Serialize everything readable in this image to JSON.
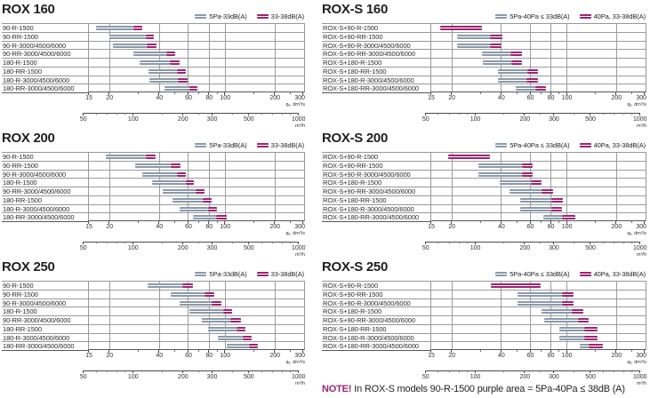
{
  "page": {
    "background": "#ffffff"
  },
  "colors": {
    "gray_bar": "#8b9aaa",
    "purple_bar": "#9c2471",
    "grid": "#9b9c9e",
    "text": "#231f20",
    "note_accent": "#9c2471"
  },
  "note": {
    "prefix": "NOTE!",
    "text": "In ROX-S models 90-R-1500 purple area = 5Pa-40Pa ≤ 38dB (A)"
  },
  "chart_data": [
    {
      "id": "rox-160",
      "title": "ROX 160",
      "type": "bar",
      "orientation": "horizontal",
      "xscale": "log",
      "xlim": [
        15,
        300
      ],
      "xticks": [
        15,
        20,
        40,
        60,
        80,
        100,
        200,
        300
      ],
      "x_minor_ticks": [
        30,
        50,
        70,
        90,
        150,
        250
      ],
      "xlabel": "qᵥ, dm³/s",
      "x2ticks": [
        50,
        100,
        200,
        300,
        500,
        1000
      ],
      "x2_minor_ticks": [
        60,
        70,
        80,
        90,
        150,
        250,
        400,
        600,
        700,
        800,
        900
      ],
      "x2label": "m³/h",
      "x2_to_x_divisor": 3.6,
      "legend": {
        "gray": "5Pa-33dB(A)",
        "purple": "33-38dB(A)"
      },
      "rows": [
        {
          "label": "90-R-1500",
          "gray": [
            16.5,
            28
          ],
          "purple": [
            28,
            31.5
          ]
        },
        {
          "label": "90-RR-1500",
          "gray": [
            20,
            33
          ],
          "purple": [
            33,
            37
          ]
        },
        {
          "label": "90-R-3000/4500/6000",
          "gray": [
            21,
            33.5
          ],
          "purple": [
            33.5,
            38.5
          ]
        },
        {
          "label": "90-RR-3000/4500/6000",
          "gray": [
            28,
            44
          ],
          "purple": [
            44,
            50
          ]
        },
        {
          "label": "180-R-1500",
          "gray": [
            30.5,
            46.5
          ],
          "purple": [
            46.5,
            53
          ]
        },
        {
          "label": "180-RR-1500",
          "gray": [
            34.5,
            51
          ],
          "purple": [
            51,
            58
          ]
        },
        {
          "label": "180-R-3000/4500/6000",
          "gray": [
            35,
            52
          ],
          "purple": [
            52,
            59
          ]
        },
        {
          "label": "180-RR-3000/4500/6000",
          "gray": [
            43,
            60.5
          ],
          "purple": [
            60.5,
            68
          ]
        }
      ]
    },
    {
      "id": "rox-s-160",
      "title": "ROX-S 160",
      "type": "bar",
      "orientation": "horizontal",
      "xscale": "log",
      "xlim": [
        15,
        300
      ],
      "xticks": [
        15,
        20,
        40,
        60,
        80,
        100,
        200,
        300
      ],
      "x_minor_ticks": [
        30,
        50,
        70,
        90,
        150,
        250
      ],
      "xlabel": "qᵥ, dm³/s",
      "x2ticks": [
        50,
        100,
        200,
        300,
        500,
        1000
      ],
      "x2_minor_ticks": [
        60,
        70,
        80,
        90,
        150,
        250,
        400,
        600,
        700,
        800,
        900
      ],
      "x2label": "m³/h",
      "x2_to_x_divisor": 3.6,
      "legend": {
        "gray": "5Pa-40Pa ≤ 33dB(A)",
        "purple": "40Pa, 33-38dB(A)"
      },
      "rows": [
        {
          "label": "ROX-S+90-R-1500",
          "gray": null,
          "purple": [
            17,
            30.5
          ]
        },
        {
          "label": "ROX-S+90-RR-1500",
          "gray": [
            21.5,
            34
          ],
          "purple": [
            34,
            40.5
          ]
        },
        {
          "label": "ROX-S+90-R-3000/4500/6000",
          "gray": [
            21.5,
            34
          ],
          "purple": [
            34,
            40
          ]
        },
        {
          "label": "ROX-S+90-RR-3000/4500/6000",
          "gray": [
            30.5,
            45.5
          ],
          "purple": [
            45.5,
            53.5
          ]
        },
        {
          "label": "ROX-S+180-R-1500",
          "gray": [
            31,
            46
          ],
          "purple": [
            46,
            53
          ]
        },
        {
          "label": "ROX-S+180-RR-1500",
          "gray": [
            38,
            57.5
          ],
          "purple": [
            57.5,
            66.5
          ]
        },
        {
          "label": "ROX-S+180-R-3000/4500/6000",
          "gray": [
            38,
            57
          ],
          "purple": [
            57,
            66.5
          ]
        },
        {
          "label": "ROX-S+180-RR-3000/4500/6000",
          "gray": [
            49,
            64
          ],
          "purple": [
            64,
            75
          ]
        }
      ]
    },
    {
      "id": "rox-200",
      "title": "ROX 200",
      "type": "bar",
      "orientation": "horizontal",
      "xscale": "log",
      "xlim": [
        15,
        300
      ],
      "xticks": [
        15,
        20,
        40,
        60,
        80,
        100,
        200,
        300
      ],
      "x_minor_ticks": [
        30,
        50,
        70,
        90,
        150,
        250
      ],
      "xlabel": "qᵥ, dm³/s",
      "x2ticks": [
        50,
        100,
        200,
        300,
        500,
        1000
      ],
      "x2_minor_ticks": [
        60,
        70,
        80,
        90,
        150,
        250,
        400,
        600,
        700,
        800,
        900
      ],
      "x2label": "m³/h",
      "x2_to_x_divisor": 3.6,
      "legend": {
        "gray": "5Pa-33dB(A)",
        "purple": "33-38dB(A)"
      },
      "rows": [
        {
          "label": "90-R-1500",
          "gray": [
            19,
            33
          ],
          "purple": [
            33,
            38
          ]
        },
        {
          "label": "90-RR-1500",
          "gray": [
            28.5,
            47
          ],
          "purple": [
            47,
            54
          ]
        },
        {
          "label": "90-R-3000/4500/6000",
          "gray": [
            31.5,
            51
          ],
          "purple": [
            51,
            58
          ]
        },
        {
          "label": "180-R-1500",
          "gray": [
            36,
            57.5
          ],
          "purple": [
            57.5,
            65
          ]
        },
        {
          "label": "90-RR-3000/4500/6000",
          "gray": [
            42,
            66.5
          ],
          "purple": [
            66.5,
            75
          ]
        },
        {
          "label": "180-RR-1500",
          "gray": [
            48,
            73.5
          ],
          "purple": [
            73.5,
            83
          ]
        },
        {
          "label": "180-R-3000/4500/6000",
          "gray": [
            53,
            79
          ],
          "purple": [
            79,
            89
          ]
        },
        {
          "label": "180-RR-3000/4500/6000",
          "gray": [
            64,
            88
          ],
          "purple": [
            88,
            102
          ]
        }
      ]
    },
    {
      "id": "rox-s-200",
      "title": "ROX-S 200",
      "type": "bar",
      "orientation": "horizontal",
      "xscale": "log",
      "xlim": [
        15,
        300
      ],
      "xticks": [
        15,
        20,
        40,
        60,
        80,
        100,
        200,
        300
      ],
      "x_minor_ticks": [
        30,
        50,
        70,
        90,
        150,
        250
      ],
      "xlabel": "qᵥ, dm³/s",
      "x2ticks": [
        50,
        100,
        200,
        300,
        500,
        1000
      ],
      "x2_minor_ticks": [
        60,
        70,
        80,
        90,
        150,
        250,
        400,
        600,
        700,
        800,
        900
      ],
      "x2label": "m³/h",
      "x2_to_x_divisor": 3.6,
      "legend": {
        "gray": "5Pa-40Pa ≤ 33dB(A)",
        "purple": "40Pa, 33-38dB(A)"
      },
      "rows": [
        {
          "label": "ROX-S+90-R-1500",
          "gray": null,
          "purple": [
            19,
            34
          ]
        },
        {
          "label": "ROX-S+90-RR-1500",
          "gray": [
            29,
            53
          ],
          "purple": [
            53,
            62
          ]
        },
        {
          "label": "ROX-S+90-R-3000/4500/6000",
          "gray": [
            29,
            53
          ],
          "purple": [
            53,
            62
          ]
        },
        {
          "label": "ROX-S+180-R-1500",
          "gray": [
            39,
            60
          ],
          "purple": [
            60,
            70
          ]
        },
        {
          "label": "ROX-S+90-RR-3000/4500/6000",
          "gray": [
            45,
            70
          ],
          "purple": [
            70,
            82
          ]
        },
        {
          "label": "ROX-S+180-RR-1500",
          "gray": [
            52,
            80
          ],
          "purple": [
            80,
            94
          ]
        },
        {
          "label": "ROX-S+180-R-3000/4500/6000",
          "gray": [
            52,
            80
          ],
          "purple": [
            80,
            93
          ]
        },
        {
          "label": "ROX-S+180-RR-3000/4500/6000",
          "gray": [
            72,
            93
          ],
          "purple": [
            93,
            112
          ]
        }
      ]
    },
    {
      "id": "rox-250",
      "title": "ROX 250",
      "type": "bar",
      "orientation": "horizontal",
      "xscale": "log",
      "xlim": [
        15,
        300
      ],
      "xticks": [
        15,
        20,
        40,
        60,
        80,
        100,
        200,
        300
      ],
      "x_minor_ticks": [
        30,
        50,
        70,
        90,
        150,
        250
      ],
      "xlabel": "qᵥ, dm³/s",
      "x2ticks": [
        50,
        100,
        200,
        300,
        500,
        1000
      ],
      "x2_minor_ticks": [
        60,
        70,
        80,
        90,
        150,
        250,
        400,
        600,
        700,
        800,
        900
      ],
      "x2label": "m³/h",
      "x2_to_x_divisor": 3.6,
      "legend": {
        "gray": "5Pa-33dB(A)",
        "purple": "33-38dB(A)"
      },
      "rows": [
        {
          "label": "90-R-1500",
          "gray": [
            34,
            55
          ],
          "purple": [
            55,
            64
          ]
        },
        {
          "label": "90-RR-1500",
          "gray": [
            47,
            75
          ],
          "purple": [
            75,
            86
          ]
        },
        {
          "label": "90-R-3000/4500/6000",
          "gray": [
            53,
            83
          ],
          "purple": [
            83,
            95
          ]
        },
        {
          "label": "180-R-1500",
          "gray": [
            61,
            97
          ],
          "purple": [
            97,
            110
          ]
        },
        {
          "label": "90-RR-3000/4500/6000",
          "gray": [
            72,
            107
          ],
          "purple": [
            107,
            124
          ]
        },
        {
          "label": "180-RR-1500",
          "gray": [
            79,
            117
          ],
          "purple": [
            117,
            132
          ]
        },
        {
          "label": "180-R-3000/4500/6000",
          "gray": [
            90,
            127
          ],
          "purple": [
            127,
            145
          ]
        },
        {
          "label": "180-RR-3000/4500/6000",
          "gray": [
            102,
            139
          ],
          "purple": [
            139,
            158
          ]
        }
      ]
    },
    {
      "id": "rox-s-250",
      "title": "ROX-S 250",
      "type": "bar",
      "orientation": "horizontal",
      "xscale": "log",
      "xlim": [
        15,
        300
      ],
      "xticks": [
        15,
        20,
        40,
        60,
        80,
        100,
        200,
        300
      ],
      "x_minor_ticks": [
        30,
        50,
        70,
        90,
        150,
        250
      ],
      "xlabel": "qᵥ, dm³/s",
      "x2ticks": [
        50,
        100,
        200,
        300,
        500,
        1000
      ],
      "x2_minor_ticks": [
        60,
        70,
        80,
        90,
        150,
        250,
        400,
        600,
        700,
        800,
        900
      ],
      "x2label": "m³/h",
      "x2_to_x_divisor": 3.6,
      "legend": {
        "gray": "5Pa-40Pa ≤ 33dB(A)",
        "purple": "40Pa, 33-38dB(A)"
      },
      "rows": [
        {
          "label": "ROX-S+90-R-1500",
          "gray": null,
          "purple": [
            34.5,
            69
          ]
        },
        {
          "label": "ROX-S+90-RR-1500",
          "gray": [
            50,
            93
          ],
          "purple": [
            93,
            110
          ]
        },
        {
          "label": "ROX-S+90-R-3000/4500/6000",
          "gray": [
            50,
            93
          ],
          "purple": [
            93,
            110
          ]
        },
        {
          "label": "ROX-S+180-R-1500",
          "gray": [
            70,
            107
          ],
          "purple": [
            107,
            126
          ]
        },
        {
          "label": "ROX-S+90-RR-3000/4500/6000",
          "gray": [
            73,
            117
          ],
          "purple": [
            117,
            136
          ]
        },
        {
          "label": "ROX-S+180-RR-1500",
          "gray": [
            90,
            127
          ],
          "purple": [
            127,
            153
          ]
        },
        {
          "label": "ROX-S+180-R-3000/4500/6000",
          "gray": [
            90,
            127
          ],
          "purple": [
            127,
            153
          ]
        },
        {
          "label": "ROX-S+180-RR-3000/4500/6000",
          "gray": [
            119,
            135
          ],
          "purple": [
            135,
            166
          ]
        }
      ]
    }
  ]
}
